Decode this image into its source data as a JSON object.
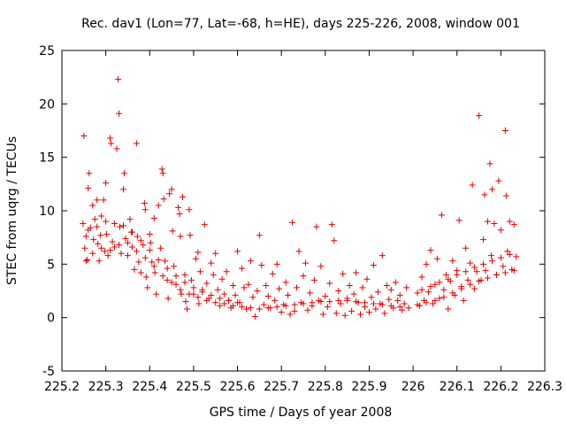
{
  "chart_data": {
    "type": "scatter",
    "title": "Rec. dav1 (Lon=77, Lat=-68, h=HE), days 225-226, 2008, window 001",
    "xlabel": "GPS time / Days of year 2008",
    "ylabel": "STEC from uqrg / TECUs",
    "xlim": [
      225.2,
      226.3
    ],
    "ylim": [
      -5,
      25
    ],
    "xticks": [
      225.2,
      225.3,
      225.4,
      225.5,
      225.6,
      225.7,
      225.8,
      225.9,
      226,
      226.1,
      226.2,
      226.3
    ],
    "xtick_labels": [
      "225.2",
      "225.3",
      "225.4",
      "225.5",
      "225.6",
      "225.7",
      "225.8",
      "225.9",
      "226",
      "226.1",
      "226.2",
      "226.3"
    ],
    "yticks": [
      -5,
      0,
      5,
      10,
      15,
      20,
      25
    ],
    "ytick_labels": [
      "-5",
      "0",
      "5",
      "10",
      "15",
      "20",
      "25"
    ],
    "marker": "plus",
    "marker_color": "#e00000",
    "series": [
      {
        "name": "STEC",
        "points": [
          [
            225.25,
            17.0
          ],
          [
            225.255,
            7.6
          ],
          [
            225.26,
            12.1
          ],
          [
            225.262,
            13.5
          ],
          [
            225.248,
            8.8
          ],
          [
            225.252,
            6.5
          ],
          [
            225.258,
            5.4
          ],
          [
            225.265,
            8.4
          ],
          [
            225.27,
            10.5
          ],
          [
            225.272,
            7.3
          ],
          [
            225.275,
            9.2
          ],
          [
            225.28,
            11.0
          ],
          [
            225.282,
            6.9
          ],
          [
            225.285,
            5.3
          ],
          [
            225.288,
            7.7
          ],
          [
            225.29,
            9.5
          ],
          [
            225.295,
            11.0
          ],
          [
            225.298,
            6.2
          ],
          [
            225.3,
            12.6
          ],
          [
            225.302,
            7.8
          ],
          [
            225.305,
            5.8
          ],
          [
            225.31,
            16.8
          ],
          [
            225.312,
            16.3
          ],
          [
            225.315,
            7.1
          ],
          [
            225.32,
            6.6
          ],
          [
            225.325,
            15.8
          ],
          [
            225.328,
            22.3
          ],
          [
            225.33,
            19.1
          ],
          [
            225.332,
            8.5
          ],
          [
            225.335,
            6.0
          ],
          [
            225.34,
            12.0
          ],
          [
            225.342,
            13.5
          ],
          [
            225.345,
            7.4
          ],
          [
            225.35,
            5.8
          ],
          [
            225.355,
            9.2
          ],
          [
            225.358,
            8.0
          ],
          [
            225.36,
            6.6
          ],
          [
            225.365,
            4.5
          ],
          [
            225.37,
            16.3
          ],
          [
            225.372,
            7.6
          ],
          [
            225.375,
            5.2
          ],
          [
            225.38,
            4.2
          ],
          [
            225.385,
            6.8
          ],
          [
            225.388,
            10.7
          ],
          [
            225.39,
            10.1
          ],
          [
            225.392,
            3.8
          ],
          [
            225.395,
            2.8
          ],
          [
            225.4,
            7.8
          ],
          [
            225.402,
            7.0
          ],
          [
            225.405,
            5.2
          ],
          [
            225.41,
            9.3
          ],
          [
            225.412,
            4.2
          ],
          [
            225.415,
            2.2
          ],
          [
            225.42,
            10.5
          ],
          [
            225.425,
            6.5
          ],
          [
            225.428,
            13.9
          ],
          [
            225.43,
            13.5
          ],
          [
            225.432,
            11.1
          ],
          [
            225.435,
            5.3
          ],
          [
            225.44,
            3.5
          ],
          [
            225.442,
            1.8
          ],
          [
            225.445,
            11.6
          ],
          [
            225.45,
            12.0
          ],
          [
            225.452,
            8.1
          ],
          [
            225.455,
            4.8
          ],
          [
            225.46,
            3.1
          ],
          [
            225.465,
            10.3
          ],
          [
            225.468,
            9.7
          ],
          [
            225.47,
            7.6
          ],
          [
            225.472,
            2.2
          ],
          [
            225.475,
            11.3
          ],
          [
            225.48,
            4.0
          ],
          [
            225.482,
            1.5
          ],
          [
            225.485,
            0.8
          ],
          [
            225.49,
            10.1
          ],
          [
            225.492,
            7.7
          ],
          [
            225.495,
            3.5
          ],
          [
            225.5,
            2.2
          ],
          [
            225.505,
            5.5
          ],
          [
            225.51,
            6.1
          ],
          [
            225.512,
            1.3
          ],
          [
            225.515,
            4.3
          ],
          [
            225.52,
            2.6
          ],
          [
            225.525,
            8.7
          ],
          [
            225.53,
            3.2
          ],
          [
            225.535,
            1.8
          ],
          [
            225.54,
            5.1
          ],
          [
            225.545,
            4.0
          ],
          [
            225.55,
            6.0
          ],
          [
            225.555,
            2.6
          ],
          [
            225.56,
            1.1
          ],
          [
            225.565,
            3.6
          ],
          [
            225.57,
            2.2
          ],
          [
            225.575,
            4.3
          ],
          [
            225.58,
            1.6
          ],
          [
            225.585,
            0.9
          ],
          [
            225.59,
            3.0
          ],
          [
            225.595,
            2.1
          ],
          [
            225.6,
            6.2
          ],
          [
            225.605,
            1.4
          ],
          [
            225.61,
            4.6
          ],
          [
            225.615,
            2.8
          ],
          [
            225.62,
            0.8
          ],
          [
            225.625,
            3.1
          ],
          [
            225.63,
            5.3
          ],
          [
            225.635,
            1.9
          ],
          [
            225.64,
            0.1
          ],
          [
            225.645,
            2.5
          ],
          [
            225.65,
            7.7
          ],
          [
            225.655,
            4.9
          ],
          [
            225.66,
            1.2
          ],
          [
            225.665,
            3.0
          ],
          [
            225.67,
            2.0
          ],
          [
            225.675,
            0.9
          ],
          [
            225.68,
            4.1
          ],
          [
            225.685,
            1.6
          ],
          [
            225.69,
            5.0
          ],
          [
            225.695,
            2.7
          ],
          [
            225.7,
            0.5
          ],
          [
            225.705,
            1.2
          ],
          [
            225.71,
            3.3
          ],
          [
            225.715,
            2.1
          ],
          [
            225.72,
            0.3
          ],
          [
            225.725,
            8.9
          ],
          [
            225.73,
            0.6
          ],
          [
            225.735,
            2.8
          ],
          [
            225.74,
            6.2
          ],
          [
            225.745,
            1.4
          ],
          [
            225.75,
            3.9
          ],
          [
            225.755,
            5.1
          ],
          [
            225.76,
            0.7
          ],
          [
            225.765,
            2.3
          ],
          [
            225.77,
            1.1
          ],
          [
            225.775,
            3.5
          ],
          [
            225.78,
            8.5
          ],
          [
            225.785,
            1.6
          ],
          [
            225.79,
            4.8
          ],
          [
            225.795,
            0.3
          ],
          [
            225.8,
            2.0
          ],
          [
            225.805,
            1.0
          ],
          [
            225.81,
            3.2
          ],
          [
            225.815,
            8.7
          ],
          [
            225.82,
            7.2
          ],
          [
            225.825,
            0.4
          ],
          [
            225.83,
            2.5
          ],
          [
            225.835,
            1.3
          ],
          [
            225.84,
            4.1
          ],
          [
            225.845,
            0.2
          ],
          [
            225.85,
            1.8
          ],
          [
            225.855,
            3.0
          ],
          [
            225.86,
            0.6
          ],
          [
            225.865,
            2.2
          ],
          [
            225.87,
            4.2
          ],
          [
            225.875,
            1.4
          ],
          [
            225.88,
            0.3
          ],
          [
            225.885,
            2.8
          ],
          [
            225.89,
            1.0
          ],
          [
            225.895,
            3.6
          ],
          [
            225.9,
            0.5
          ],
          [
            225.905,
            1.9
          ],
          [
            225.91,
            4.9
          ],
          [
            225.915,
            0.8
          ],
          [
            225.92,
            2.4
          ],
          [
            225.925,
            1.3
          ],
          [
            225.93,
            5.8
          ],
          [
            225.935,
            0.4
          ],
          [
            225.94,
            3.0
          ],
          [
            225.945,
            1.7
          ],
          [
            225.95,
            2.6
          ],
          [
            225.955,
            0.9
          ],
          [
            225.96,
            3.3
          ],
          [
            225.965,
            1.6
          ],
          [
            225.97,
            2.1
          ],
          [
            225.975,
            0.7
          ],
          [
            225.98,
            1.3
          ],
          [
            225.985,
            2.8
          ],
          [
            225.99,
            0.9
          ],
          [
            226.01,
            2.3
          ],
          [
            226.015,
            1.1
          ],
          [
            226.02,
            3.8
          ],
          [
            226.025,
            1.6
          ],
          [
            226.03,
            5.0
          ],
          [
            226.035,
            2.4
          ],
          [
            226.04,
            6.3
          ],
          [
            226.045,
            1.3
          ],
          [
            226.05,
            3.1
          ],
          [
            226.055,
            5.5
          ],
          [
            226.06,
            1.8
          ],
          [
            226.065,
            9.6
          ],
          [
            226.07,
            2.6
          ],
          [
            226.075,
            4.0
          ],
          [
            226.08,
            0.8
          ],
          [
            226.085,
            3.4
          ],
          [
            226.09,
            5.3
          ],
          [
            226.095,
            2.1
          ],
          [
            226.1,
            4.4
          ],
          [
            226.105,
            9.1
          ],
          [
            226.11,
            2.9
          ],
          [
            226.115,
            1.6
          ],
          [
            226.12,
            6.5
          ],
          [
            226.125,
            3.5
          ],
          [
            226.13,
            5.1
          ],
          [
            226.135,
            12.4
          ],
          [
            226.14,
            2.7
          ],
          [
            226.145,
            4.3
          ],
          [
            226.15,
            18.9
          ],
          [
            226.155,
            3.5
          ],
          [
            226.16,
            7.3
          ],
          [
            226.163,
            11.5
          ],
          [
            226.165,
            4.4
          ],
          [
            226.17,
            9.0
          ],
          [
            226.175,
            14.4
          ],
          [
            226.178,
            5.8
          ],
          [
            226.18,
            12.0
          ],
          [
            226.185,
            8.8
          ],
          [
            226.19,
            4.0
          ],
          [
            226.195,
            12.8
          ],
          [
            226.2,
            8.2
          ],
          [
            226.205,
            4.8
          ],
          [
            226.21,
            17.5
          ],
          [
            226.212,
            11.4
          ],
          [
            226.215,
            6.2
          ],
          [
            226.22,
            9.0
          ],
          [
            226.225,
            4.5
          ],
          [
            226.23,
            8.7
          ],
          [
            226.235,
            5.7
          ],
          [
            225.255,
            5.3
          ],
          [
            225.27,
            6.0
          ],
          [
            225.29,
            6.5
          ],
          [
            225.31,
            6.3
          ],
          [
            225.33,
            6.8
          ],
          [
            225.35,
            7.0
          ],
          [
            225.37,
            6.2
          ],
          [
            225.39,
            5.6
          ],
          [
            225.41,
            4.8
          ],
          [
            225.43,
            3.9
          ],
          [
            225.45,
            3.3
          ],
          [
            225.47,
            2.6
          ],
          [
            225.49,
            2.2
          ],
          [
            225.51,
            1.9
          ],
          [
            225.53,
            1.6
          ],
          [
            225.55,
            1.4
          ],
          [
            225.57,
            1.3
          ],
          [
            225.59,
            1.1
          ],
          [
            225.61,
            1.0
          ],
          [
            225.63,
            0.9
          ],
          [
            225.65,
            0.8
          ],
          [
            225.67,
            0.9
          ],
          [
            225.69,
            1.0
          ],
          [
            225.71,
            1.1
          ],
          [
            225.73,
            1.2
          ],
          [
            225.75,
            1.3
          ],
          [
            225.77,
            1.4
          ],
          [
            225.79,
            1.5
          ],
          [
            225.81,
            1.5
          ],
          [
            225.83,
            1.6
          ],
          [
            225.85,
            1.6
          ],
          [
            225.87,
            1.5
          ],
          [
            225.89,
            1.4
          ],
          [
            225.91,
            1.3
          ],
          [
            225.93,
            1.2
          ],
          [
            225.95,
            1.1
          ],
          [
            225.97,
            1.0
          ],
          [
            226.01,
            1.2
          ],
          [
            226.03,
            1.4
          ],
          [
            226.05,
            1.6
          ],
          [
            226.07,
            1.9
          ],
          [
            226.09,
            2.3
          ],
          [
            226.11,
            2.7
          ],
          [
            226.13,
            3.1
          ],
          [
            226.15,
            3.4
          ],
          [
            226.17,
            3.7
          ],
          [
            226.19,
            4.0
          ],
          [
            226.21,
            4.2
          ],
          [
            226.23,
            4.4
          ],
          [
            225.26,
            8.2
          ],
          [
            225.28,
            8.5
          ],
          [
            225.3,
            9.0
          ],
          [
            225.32,
            8.8
          ],
          [
            225.34,
            8.6
          ],
          [
            225.36,
            8.0
          ],
          [
            225.38,
            7.2
          ],
          [
            225.4,
            6.3
          ],
          [
            225.42,
            5.4
          ],
          [
            225.44,
            4.6
          ],
          [
            225.46,
            3.9
          ],
          [
            225.48,
            3.3
          ],
          [
            225.5,
            2.8
          ],
          [
            225.52,
            2.4
          ],
          [
            225.54,
            2.1
          ],
          [
            225.56,
            1.8
          ],
          [
            225.58,
            1.6
          ],
          [
            225.6,
            1.4
          ],
          [
            226.02,
            2.6
          ],
          [
            226.04,
            2.9
          ],
          [
            226.06,
            3.3
          ],
          [
            226.08,
            3.6
          ],
          [
            226.1,
            4.0
          ],
          [
            226.12,
            4.3
          ],
          [
            226.14,
            4.7
          ],
          [
            226.16,
            5.0
          ],
          [
            226.18,
            5.3
          ],
          [
            226.2,
            5.6
          ],
          [
            226.22,
            5.9
          ]
        ]
      }
    ]
  }
}
